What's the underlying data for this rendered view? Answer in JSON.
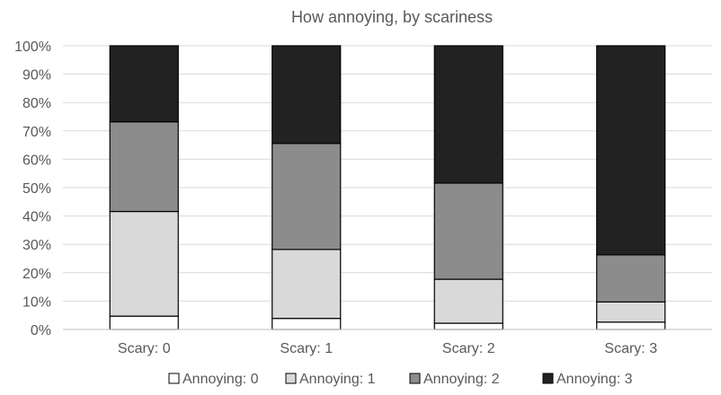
{
  "chart_data": {
    "type": "bar",
    "stacked": true,
    "percent": true,
    "title": "How annoying, by scariness",
    "categories": [
      "Scary: 0",
      "Scary: 1",
      "Scary: 2",
      "Scary: 3"
    ],
    "series": [
      {
        "name": "Annoying: 0",
        "color": "#ffffff",
        "values": [
          4.7,
          3.9,
          2.2,
          2.6
        ]
      },
      {
        "name": "Annoying: 1",
        "color": "#d9d9d9",
        "values": [
          36.9,
          24.3,
          15.5,
          7.1
        ]
      },
      {
        "name": "Annoying: 2",
        "color": "#8c8c8c",
        "values": [
          31.6,
          37.4,
          33.9,
          16.6
        ]
      },
      {
        "name": "Annoying: 3",
        "color": "#222222",
        "values": [
          26.8,
          34.4,
          48.4,
          73.7
        ]
      }
    ],
    "ylim": [
      0,
      100
    ],
    "yticks": [
      "0%",
      "10%",
      "20%",
      "30%",
      "40%",
      "50%",
      "60%",
      "70%",
      "80%",
      "90%",
      "100%"
    ],
    "grid": true,
    "legend": "bottom"
  }
}
